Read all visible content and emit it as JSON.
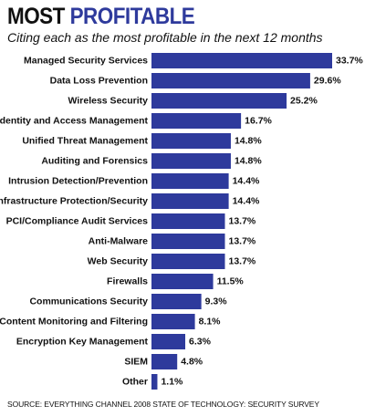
{
  "header": {
    "title_part1": "MOST",
    "title_part2": "PROFITABLE",
    "subtitle": "Citing each as the most profitable in the next 12 months"
  },
  "footer": {
    "source": "SOURCE: EVERYTHING CHANNEL 2008 STATE OF TECHNOLOGY: SECURITY SURVEY"
  },
  "colors": {
    "bar": "#2e3a9c",
    "title_accent": "#2e3a9c"
  },
  "chart_data": {
    "type": "bar",
    "orientation": "horizontal",
    "categories": [
      "Managed Security Services",
      "Data Loss Prevention",
      "Wireless Security",
      "Identity and Access Management",
      "Unified Threat Management",
      "Auditing and Forensics",
      "Intrusion Detection/Prevention",
      "Infrastructure Protection/Security",
      "PCI/Compliance Audit Services",
      "Anti-Malware",
      "Web Security",
      "Firewalls",
      "Communications Security",
      "Content Monitoring and Filtering",
      "Encryption Key Management",
      "SIEM",
      "Other"
    ],
    "values": [
      33.7,
      29.6,
      25.2,
      16.7,
      14.8,
      14.8,
      14.4,
      14.4,
      13.7,
      13.7,
      13.7,
      11.5,
      9.3,
      8.1,
      6.3,
      4.8,
      1.1
    ],
    "value_labels": [
      "33.7%",
      "29.6%",
      "25.2%",
      "16.7%",
      "14.8%",
      "14.8%",
      "14.4%",
      "14.4%",
      "13.7%",
      "13.7%",
      "13.7%",
      "11.5%",
      "9.3%",
      "8.1%",
      "6.3%",
      "4.8%",
      "1.1%"
    ],
    "xlim": [
      0,
      33.7
    ],
    "grid": false,
    "legend": "none"
  }
}
